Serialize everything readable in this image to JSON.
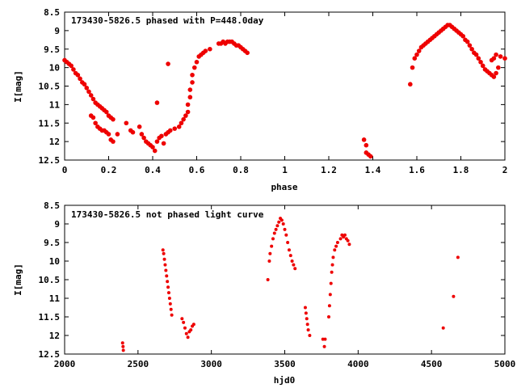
{
  "chart_data": [
    {
      "type": "scatter",
      "title": "173430-5826.5 phased with P=448.0day",
      "xlabel": "phase",
      "ylabel": "I[mag]",
      "xlim": [
        0,
        2
      ],
      "ylim": [
        12.5,
        8.5
      ],
      "y_inverted": true,
      "grid": false,
      "marker_color": "#ee0000",
      "xticks": [
        "0",
        "0.2",
        "0.4",
        "0.6",
        "0.8",
        "1",
        "1.2",
        "1.4",
        "1.6",
        "1.8",
        "2"
      ],
      "yticks": [
        "8.5",
        "9",
        "9.5",
        "10",
        "10.5",
        "11",
        "11.5",
        "12",
        "12.5"
      ],
      "points": [
        [
          0.0,
          9.8
        ],
        [
          0.01,
          9.85
        ],
        [
          0.02,
          9.9
        ],
        [
          0.03,
          9.95
        ],
        [
          0.04,
          10.05
        ],
        [
          0.05,
          10.15
        ],
        [
          0.06,
          10.2
        ],
        [
          0.07,
          10.3
        ],
        [
          0.08,
          10.4
        ],
        [
          0.09,
          10.45
        ],
        [
          0.1,
          10.55
        ],
        [
          0.11,
          10.65
        ],
        [
          0.12,
          10.75
        ],
        [
          0.13,
          10.85
        ],
        [
          0.14,
          10.95
        ],
        [
          0.15,
          11.0
        ],
        [
          0.16,
          11.05
        ],
        [
          0.17,
          11.1
        ],
        [
          0.18,
          11.15
        ],
        [
          0.19,
          11.2
        ],
        [
          0.2,
          11.3
        ],
        [
          0.21,
          11.35
        ],
        [
          0.22,
          11.4
        ],
        [
          0.12,
          11.3
        ],
        [
          0.13,
          11.35
        ],
        [
          0.14,
          11.5
        ],
        [
          0.15,
          11.6
        ],
        [
          0.16,
          11.65
        ],
        [
          0.17,
          11.7
        ],
        [
          0.18,
          11.7
        ],
        [
          0.19,
          11.75
        ],
        [
          0.2,
          11.8
        ],
        [
          0.21,
          11.95
        ],
        [
          0.22,
          12.0
        ],
        [
          0.24,
          11.8
        ],
        [
          0.28,
          11.5
        ],
        [
          0.3,
          11.7
        ],
        [
          0.31,
          11.75
        ],
        [
          0.34,
          11.6
        ],
        [
          0.35,
          11.8
        ],
        [
          0.36,
          11.9
        ],
        [
          0.37,
          12.0
        ],
        [
          0.38,
          12.05
        ],
        [
          0.39,
          12.1
        ],
        [
          0.4,
          12.15
        ],
        [
          0.41,
          12.25
        ],
        [
          0.42,
          12.0
        ],
        [
          0.43,
          11.9
        ],
        [
          0.44,
          11.85
        ],
        [
          0.45,
          12.05
        ],
        [
          0.46,
          11.8
        ],
        [
          0.47,
          11.75
        ],
        [
          0.48,
          11.7
        ],
        [
          0.5,
          11.65
        ],
        [
          0.52,
          11.6
        ],
        [
          0.53,
          11.5
        ],
        [
          0.54,
          11.4
        ],
        [
          0.55,
          11.3
        ],
        [
          0.56,
          11.2
        ],
        [
          0.56,
          11.0
        ],
        [
          0.57,
          10.8
        ],
        [
          0.57,
          10.6
        ],
        [
          0.58,
          10.4
        ],
        [
          0.58,
          10.2
        ],
        [
          0.59,
          10.0
        ],
        [
          0.6,
          9.85
        ],
        [
          0.61,
          9.7
        ],
        [
          0.62,
          9.65
        ],
        [
          0.63,
          9.6
        ],
        [
          0.64,
          9.55
        ],
        [
          0.66,
          9.5
        ],
        [
          0.42,
          10.95
        ],
        [
          0.47,
          9.9
        ],
        [
          0.7,
          9.35
        ],
        [
          0.71,
          9.35
        ],
        [
          0.72,
          9.3
        ],
        [
          0.73,
          9.35
        ],
        [
          0.74,
          9.3
        ],
        [
          0.75,
          9.3
        ],
        [
          0.76,
          9.3
        ],
        [
          0.77,
          9.35
        ],
        [
          0.78,
          9.4
        ],
        [
          0.79,
          9.4
        ],
        [
          0.8,
          9.45
        ],
        [
          0.81,
          9.5
        ],
        [
          0.82,
          9.55
        ],
        [
          0.83,
          9.6
        ],
        [
          1.36,
          11.95
        ],
        [
          1.37,
          12.3
        ],
        [
          1.37,
          12.1
        ],
        [
          1.38,
          12.35
        ],
        [
          1.39,
          12.4
        ],
        [
          1.57,
          10.45
        ],
        [
          1.58,
          10.0
        ],
        [
          1.59,
          9.75
        ],
        [
          1.6,
          9.65
        ],
        [
          1.61,
          9.55
        ],
        [
          1.62,
          9.45
        ],
        [
          1.63,
          9.4
        ],
        [
          1.64,
          9.35
        ],
        [
          1.65,
          9.3
        ],
        [
          1.66,
          9.25
        ],
        [
          1.67,
          9.2
        ],
        [
          1.68,
          9.15
        ],
        [
          1.69,
          9.1
        ],
        [
          1.7,
          9.05
        ],
        [
          1.71,
          9.0
        ],
        [
          1.72,
          8.95
        ],
        [
          1.73,
          8.9
        ],
        [
          1.74,
          8.85
        ],
        [
          1.75,
          8.85
        ],
        [
          1.76,
          8.9
        ],
        [
          1.77,
          8.95
        ],
        [
          1.78,
          9.0
        ],
        [
          1.79,
          9.05
        ],
        [
          1.8,
          9.1
        ],
        [
          1.81,
          9.15
        ],
        [
          1.82,
          9.25
        ],
        [
          1.83,
          9.3
        ],
        [
          1.84,
          9.4
        ],
        [
          1.85,
          9.5
        ],
        [
          1.86,
          9.6
        ],
        [
          1.87,
          9.65
        ],
        [
          1.88,
          9.75
        ],
        [
          1.89,
          9.85
        ],
        [
          1.9,
          9.95
        ],
        [
          1.91,
          10.05
        ],
        [
          1.92,
          10.1
        ],
        [
          1.93,
          10.15
        ],
        [
          1.94,
          10.2
        ],
        [
          1.95,
          10.25
        ],
        [
          1.96,
          10.15
        ],
        [
          1.97,
          10.0
        ],
        [
          1.94,
          9.8
        ],
        [
          1.95,
          9.75
        ],
        [
          1.96,
          9.65
        ],
        [
          1.98,
          9.7
        ],
        [
          2.0,
          9.75
        ]
      ]
    },
    {
      "type": "scatter",
      "title": "173430-5826.5 not phased light curve",
      "xlabel": "hjd0",
      "ylabel": "I[mag]",
      "xlim": [
        2000,
        5000
      ],
      "ylim": [
        12.5,
        8.5
      ],
      "y_inverted": true,
      "grid": false,
      "marker_color": "#ee0000",
      "xticks": [
        "2000",
        "2500",
        "3000",
        "3500",
        "4000",
        "4500",
        "5000"
      ],
      "yticks": [
        "8.5",
        "9",
        "9.5",
        "10",
        "10.5",
        "11",
        "11.5",
        "12",
        "12.5"
      ],
      "points": [
        [
          2395,
          12.2
        ],
        [
          2398,
          12.3
        ],
        [
          2400,
          12.4
        ],
        [
          2670,
          9.7
        ],
        [
          2675,
          9.8
        ],
        [
          2680,
          9.95
        ],
        [
          2685,
          10.1
        ],
        [
          2690,
          10.25
        ],
        [
          2695,
          10.4
        ],
        [
          2700,
          10.55
        ],
        [
          2705,
          10.7
        ],
        [
          2710,
          10.85
        ],
        [
          2715,
          11.0
        ],
        [
          2720,
          11.15
        ],
        [
          2725,
          11.3
        ],
        [
          2730,
          11.45
        ],
        [
          2800,
          11.55
        ],
        [
          2810,
          11.65
        ],
        [
          2820,
          11.8
        ],
        [
          2830,
          11.95
        ],
        [
          2840,
          12.05
        ],
        [
          2850,
          11.9
        ],
        [
          2860,
          11.85
        ],
        [
          2870,
          11.75
        ],
        [
          2880,
          11.7
        ],
        [
          3385,
          10.5
        ],
        [
          3395,
          10.0
        ],
        [
          3400,
          9.8
        ],
        [
          3410,
          9.6
        ],
        [
          3420,
          9.4
        ],
        [
          3430,
          9.25
        ],
        [
          3440,
          9.15
        ],
        [
          3450,
          9.05
        ],
        [
          3460,
          8.95
        ],
        [
          3470,
          8.85
        ],
        [
          3480,
          8.9
        ],
        [
          3490,
          9.0
        ],
        [
          3500,
          9.15
        ],
        [
          3510,
          9.3
        ],
        [
          3520,
          9.5
        ],
        [
          3530,
          9.7
        ],
        [
          3540,
          9.85
        ],
        [
          3550,
          10.0
        ],
        [
          3560,
          10.1
        ],
        [
          3570,
          10.2
        ],
        [
          3640,
          11.25
        ],
        [
          3645,
          11.4
        ],
        [
          3650,
          11.55
        ],
        [
          3655,
          11.7
        ],
        [
          3660,
          11.85
        ],
        [
          3670,
          12.0
        ],
        [
          3760,
          12.1
        ],
        [
          3770,
          12.3
        ],
        [
          3775,
          12.1
        ],
        [
          3800,
          11.5
        ],
        [
          3805,
          11.2
        ],
        [
          3810,
          10.9
        ],
        [
          3815,
          10.6
        ],
        [
          3820,
          10.3
        ],
        [
          3825,
          10.1
        ],
        [
          3830,
          9.9
        ],
        [
          3840,
          9.7
        ],
        [
          3850,
          9.6
        ],
        [
          3860,
          9.5
        ],
        [
          3880,
          9.4
        ],
        [
          3890,
          9.3
        ],
        [
          3900,
          9.35
        ],
        [
          3910,
          9.3
        ],
        [
          3920,
          9.4
        ],
        [
          3930,
          9.45
        ],
        [
          3940,
          9.55
        ],
        [
          4580,
          11.8
        ],
        [
          4650,
          10.95
        ],
        [
          4680,
          9.9
        ]
      ]
    }
  ]
}
